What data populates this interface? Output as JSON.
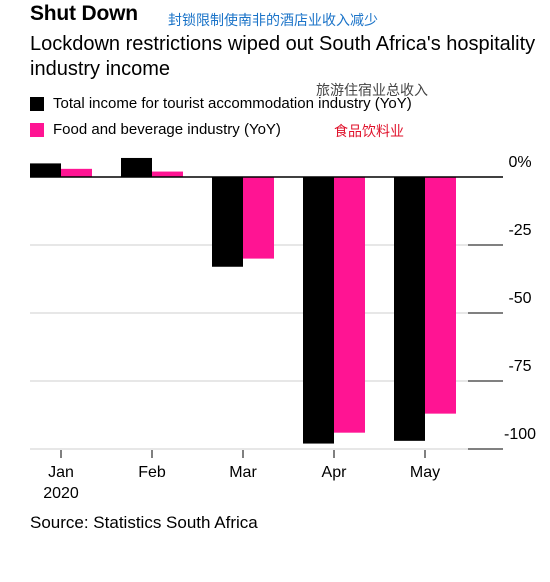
{
  "header": {
    "title": "Shut Down",
    "subtitle": "Lockdown restrictions wiped out South Africa's hospitality industry income"
  },
  "annotations": {
    "blue": "封锁限制使南非的酒店业收入减少",
    "gray": "旅游住宿业总收入",
    "red": "食品饮料业"
  },
  "legend": [
    {
      "label": "Total income for tourist accommodation industry (YoY)",
      "color": "#000000"
    },
    {
      "label": "Food and beverage industry (YoY)",
      "color": "#ff1493"
    }
  ],
  "source": "Source: Statistics South Africa",
  "chart_data": {
    "type": "bar",
    "categories": [
      "Jan",
      "Feb",
      "Mar",
      "Apr",
      "May"
    ],
    "category_sublabels": [
      "2020",
      "",
      "",
      "",
      ""
    ],
    "series": [
      {
        "name": "Total income for tourist accommodation industry (YoY)",
        "color": "#000000",
        "values": [
          5,
          7,
          -33,
          -98,
          -97
        ]
      },
      {
        "name": "Food and beverage industry (YoY)",
        "color": "#ff1493",
        "values": [
          3,
          2,
          -30,
          -94,
          -87
        ]
      }
    ],
    "ylim": [
      -100,
      0
    ],
    "yticks": [
      0,
      -25,
      -50,
      -75,
      -100
    ],
    "ytick_labels": [
      "0%",
      "-25",
      "-50",
      "-75",
      "-100"
    ],
    "grid": true
  }
}
